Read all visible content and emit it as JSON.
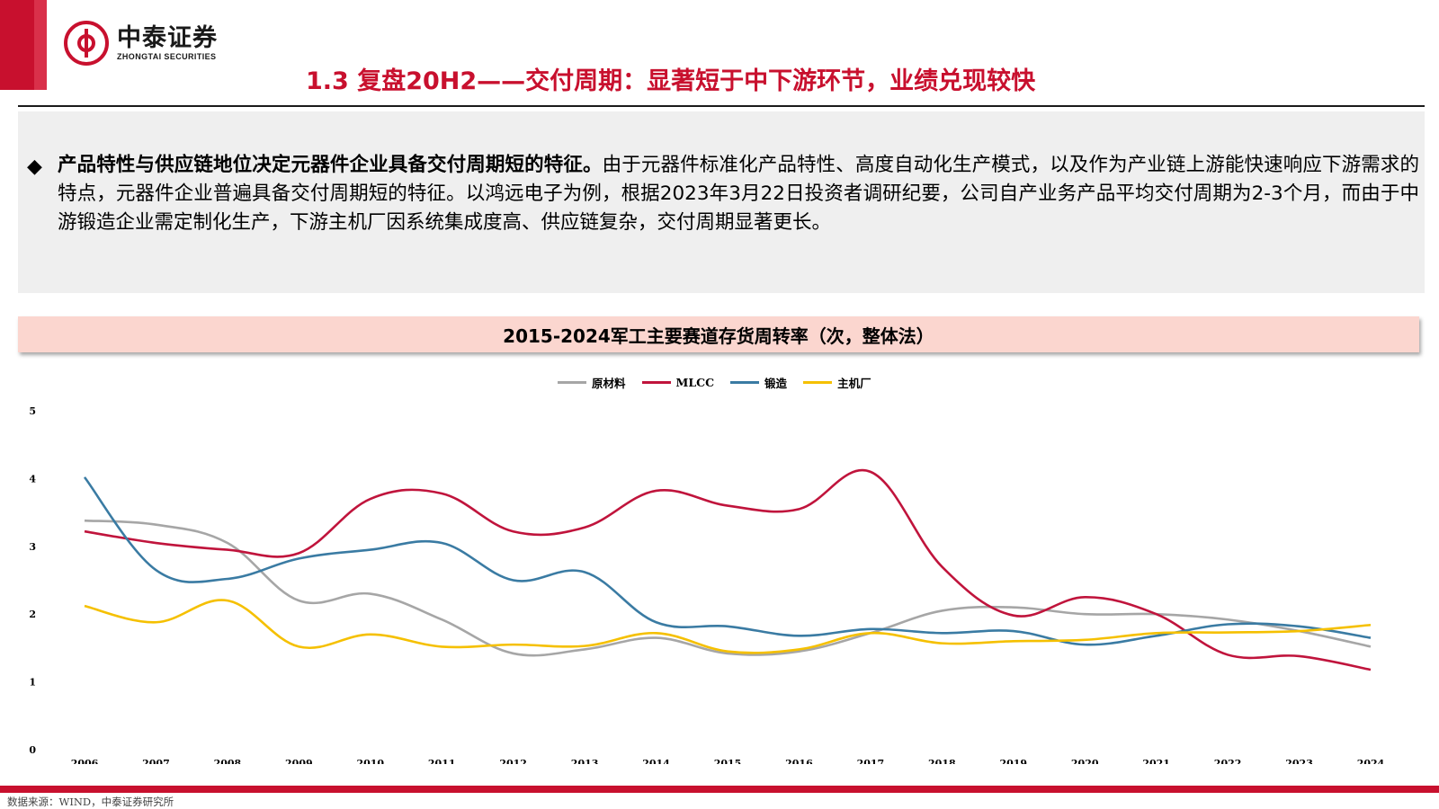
{
  "brand": {
    "name_cn": "中泰证券",
    "name_en": "ZHONGTAI SECURITIES",
    "accent_color": "#c8102e"
  },
  "page_title": "1.3 复盘20H2——交付周期：显著短于中下游环节，业绩兑现较快",
  "summary": {
    "bullet": "◆",
    "lead": "产品特性与供应链地位决定元器件企业具备交付周期短的特征。",
    "body": "由于元器件标准化产品特性、高度自动化生产模式，以及作为产业链上游能快速响应下游需求的特点，元器件企业普遍具备交付周期短的特征。以鸿远电子为例，根据2023年3月22日投资者调研纪要，公司自产业务产品平均交付周期为2-3个月，而由于中游锻造企业需定制化生产，下游主机厂因系统集成度高、供应链复杂，交付周期显著更长。"
  },
  "chart_banner": "2015-2024军工主要赛道存货周转率（次，整体法）",
  "chart_data": {
    "type": "line",
    "title": "2015-2024军工主要赛道存货周转率（次，整体法）",
    "legend_position": "top",
    "grid": false,
    "ylim": [
      0,
      5
    ],
    "y_ticks": [
      "0",
      "1",
      "2",
      "3",
      "4",
      "5"
    ],
    "x": [
      "2006",
      "2007",
      "2008",
      "2009",
      "2010",
      "2011",
      "2012",
      "2013",
      "2014",
      "2015",
      "2016",
      "2017",
      "2018",
      "2019",
      "2020",
      "2021",
      "2022",
      "2023",
      "2024"
    ],
    "series": [
      {
        "name": "原材料",
        "color": "#a6a6a6",
        "values": [
          3.38,
          3.32,
          3.05,
          2.2,
          2.3,
          1.92,
          1.42,
          1.48,
          1.65,
          1.42,
          1.45,
          1.72,
          2.05,
          2.1,
          2.0,
          2.0,
          1.92,
          1.75,
          1.52
        ]
      },
      {
        "name": "MLCC",
        "color": "#c0143c",
        "values": [
          3.22,
          3.05,
          2.95,
          2.9,
          3.7,
          3.78,
          3.22,
          3.28,
          3.82,
          3.6,
          3.55,
          4.1,
          2.7,
          1.98,
          2.25,
          2.0,
          1.4,
          1.38,
          1.18
        ]
      },
      {
        "name": "锻造",
        "color": "#3a7ba3",
        "values": [
          4.02,
          2.65,
          2.52,
          2.82,
          2.95,
          3.05,
          2.5,
          2.62,
          1.88,
          1.82,
          1.68,
          1.78,
          1.72,
          1.75,
          1.55,
          1.68,
          1.85,
          1.82,
          1.65
        ]
      },
      {
        "name": "主机厂",
        "color": "#f5c000",
        "values": [
          2.12,
          1.88,
          2.2,
          1.52,
          1.7,
          1.52,
          1.55,
          1.53,
          1.72,
          1.45,
          1.48,
          1.72,
          1.57,
          1.6,
          1.62,
          1.72,
          1.73,
          1.75,
          1.84
        ]
      }
    ]
  },
  "source": "数据来源：WIND，中泰证券研究所"
}
